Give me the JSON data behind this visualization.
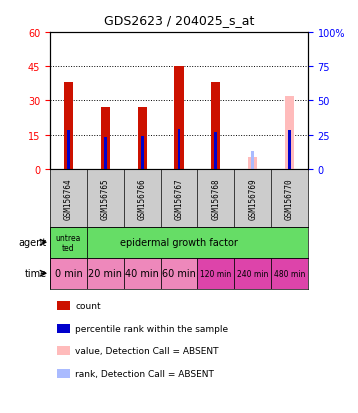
{
  "title": "GDS2623 / 204025_s_at",
  "samples": [
    "GSM156764",
    "GSM156765",
    "GSM156766",
    "GSM156767",
    "GSM156768",
    "GSM156769",
    "GSM156770"
  ],
  "count_values": [
    38,
    27,
    27,
    45,
    38,
    null,
    null
  ],
  "count_absent_values": [
    null,
    null,
    null,
    null,
    null,
    5,
    32
  ],
  "percentile_rank": [
    28,
    23,
    24,
    29,
    27,
    null,
    28
  ],
  "percentile_rank_absent": [
    null,
    null,
    null,
    null,
    null,
    13,
    null
  ],
  "ylim_left": [
    0,
    60
  ],
  "ylim_right": [
    0,
    100
  ],
  "yticks_left": [
    0,
    15,
    30,
    45,
    60
  ],
  "yticks_right": [
    0,
    25,
    50,
    75,
    100
  ],
  "ytick_labels_left": [
    "0",
    "15",
    "30",
    "45",
    "60"
  ],
  "ytick_labels_right": [
    "0",
    "25",
    "50",
    "75",
    "100%"
  ],
  "time_labels": [
    "0 min",
    "20 min",
    "40 min",
    "60 min",
    "120 min",
    "240 min",
    "480 min"
  ],
  "time_colors": [
    "#ee88bb",
    "#ee88bb",
    "#ee88bb",
    "#ee88bb",
    "#dd44aa",
    "#dd44aa",
    "#dd44aa"
  ],
  "agent_green": "#66dd66",
  "bar_color_present": "#cc1100",
  "bar_color_absent": "#ffbbbb",
  "rank_color_present": "#0000cc",
  "rank_color_absent": "#aabbff",
  "bar_width": 0.25,
  "rank_bar_width": 0.08,
  "legend_items": [
    {
      "color": "#cc1100",
      "label": "count"
    },
    {
      "color": "#0000cc",
      "label": "percentile rank within the sample"
    },
    {
      "color": "#ffbbbb",
      "label": "value, Detection Call = ABSENT"
    },
    {
      "color": "#aabbff",
      "label": "rank, Detection Call = ABSENT"
    }
  ],
  "gridline_color": "#888888",
  "axis_bg_color": "#ffffff",
  "sample_bg_color": "#cccccc"
}
